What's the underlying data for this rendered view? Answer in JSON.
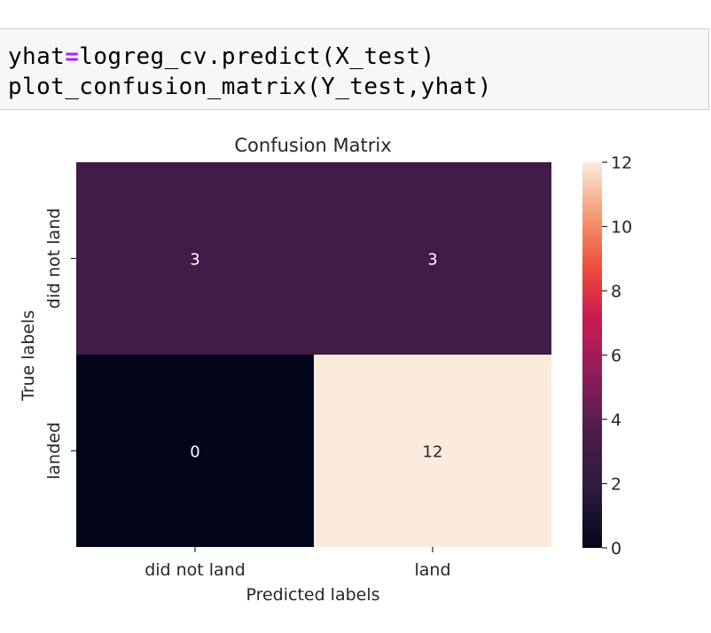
{
  "code": {
    "line1_a": "yhat",
    "line1_op": "=",
    "line1_b": "logreg_cv.predict(X_test)",
    "line2": "plot_confusion_matrix(Y_test,yhat)"
  },
  "chart_data": {
    "type": "heatmap",
    "title": "Confusion Matrix",
    "xlabel": "Predicted labels",
    "ylabel": "True labels",
    "x_categories": [
      "did not land",
      "land"
    ],
    "y_categories": [
      "did not land",
      "landed"
    ],
    "values": [
      [
        3,
        3
      ],
      [
        0,
        12
      ]
    ],
    "colormap": "rocket",
    "colorbar": {
      "min": 0,
      "max": 12,
      "ticks": [
        0,
        2,
        4,
        6,
        8,
        10,
        12
      ]
    },
    "annotations": true
  }
}
